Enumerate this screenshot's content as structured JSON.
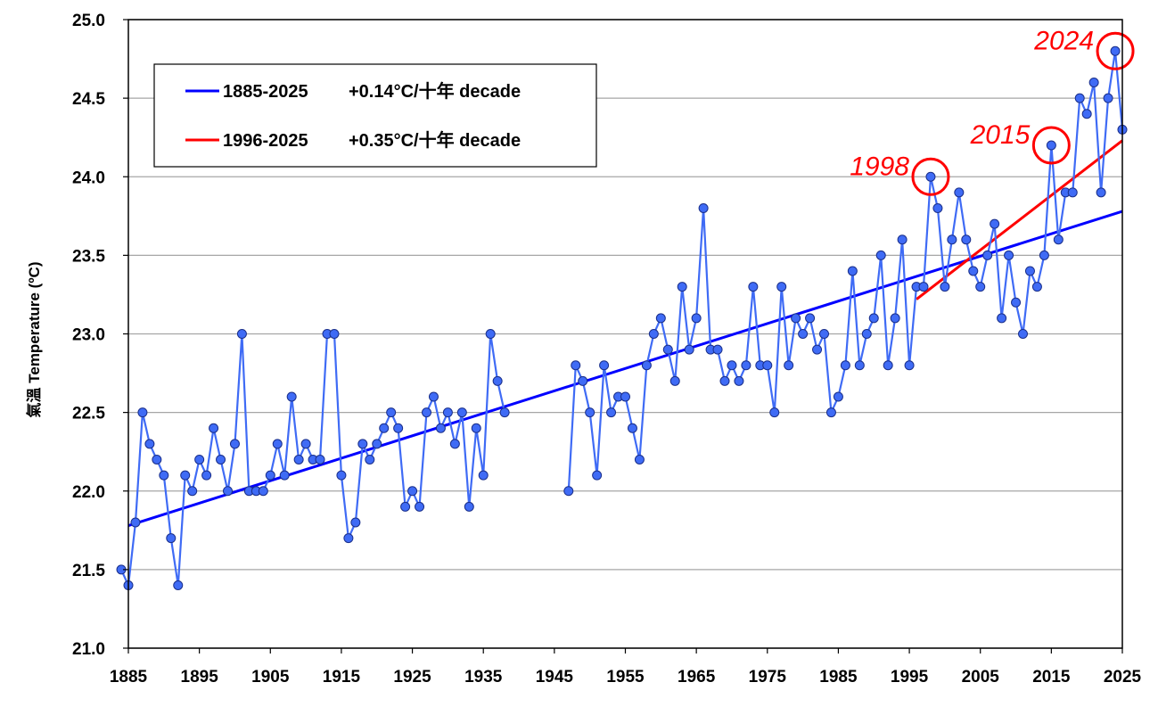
{
  "chart_data": {
    "type": "line",
    "ylabel": "氣溫 Temperature (ºC)",
    "xlim": [
      1885,
      2025
    ],
    "ylim": [
      21.0,
      25.0
    ],
    "grid": "horizontal",
    "legend_position": "top-left",
    "x_ticks": [
      "1885",
      "1895",
      "1905",
      "1915",
      "1925",
      "1935",
      "1945",
      "1955",
      "1965",
      "1975",
      "1985",
      "1995",
      "2005",
      "2015",
      "2025"
    ],
    "y_ticks": [
      "21.0",
      "21.5",
      "22.0",
      "22.5",
      "23.0",
      "23.5",
      "24.0",
      "24.5",
      "25.0"
    ],
    "series": [
      {
        "color": "#3f6bf5",
        "segments": [
          {
            "start_year": 1884,
            "values": [
              21.5,
              21.4,
              21.8,
              22.5,
              22.3,
              22.2,
              22.1,
              21.7,
              21.4,
              22.1,
              22.0,
              22.2,
              22.1,
              22.4,
              22.2,
              22.0,
              22.3,
              23.0,
              22.0,
              22.0,
              22.0,
              22.1,
              22.3,
              22.1,
              22.6,
              22.2,
              22.3,
              22.2,
              22.2,
              23.0,
              23.0,
              22.1,
              21.7,
              21.8,
              22.3,
              22.2,
              22.3,
              22.4,
              22.5,
              22.4,
              21.9,
              22.0,
              21.9,
              22.5,
              22.6,
              22.4,
              22.5,
              22.3,
              22.5,
              21.9,
              22.4,
              22.1,
              23.0,
              22.7,
              22.5
            ]
          },
          {
            "start_year": 1947,
            "values": [
              22.0,
              22.8,
              22.7,
              22.5,
              22.1,
              22.8,
              22.5,
              22.6,
              22.6,
              22.4,
              22.2,
              22.8,
              23.0,
              23.1,
              22.9,
              22.7,
              23.3,
              22.9,
              23.1,
              23.8,
              22.9,
              22.9,
              22.7,
              22.8,
              22.7,
              22.8,
              23.3,
              22.8,
              22.8,
              22.5,
              23.3,
              22.8,
              23.1,
              23.0,
              23.1,
              22.9,
              23.0,
              22.5,
              22.6,
              22.8,
              23.4,
              22.8,
              23.0,
              23.1,
              23.5,
              22.8,
              23.1,
              23.6,
              22.8,
              23.3,
              23.3,
              24.0,
              23.8,
              23.3,
              23.6,
              23.9,
              23.6,
              23.4,
              23.3,
              23.5,
              23.7,
              23.1,
              23.5,
              23.2,
              23.0,
              23.4,
              23.3,
              23.5,
              24.2,
              23.6,
              23.9,
              23.9,
              24.5,
              24.4,
              24.6,
              23.9,
              24.5,
              24.8,
              24.3
            ]
          }
        ]
      }
    ],
    "trends": [
      {
        "label": "1885-2025",
        "rate": "+0.14°C/十年 decade",
        "color": "#0000ff",
        "x": [
          1885,
          2025
        ],
        "y": [
          21.78,
          23.78
        ]
      },
      {
        "label": "1996-2025",
        "rate": "+0.35°C/十年 decade",
        "color": "#ff0000",
        "x": [
          1996,
          2025
        ],
        "y": [
          23.22,
          24.23
        ]
      }
    ],
    "annotations": [
      {
        "text": "1998",
        "x": 1998,
        "y": 24.0,
        "color": "#ff0000"
      },
      {
        "text": "2015",
        "x": 2015,
        "y": 24.2,
        "color": "#ff0000"
      },
      {
        "text": "2024",
        "x": 2024,
        "y": 24.8,
        "color": "#ff0000"
      }
    ]
  }
}
